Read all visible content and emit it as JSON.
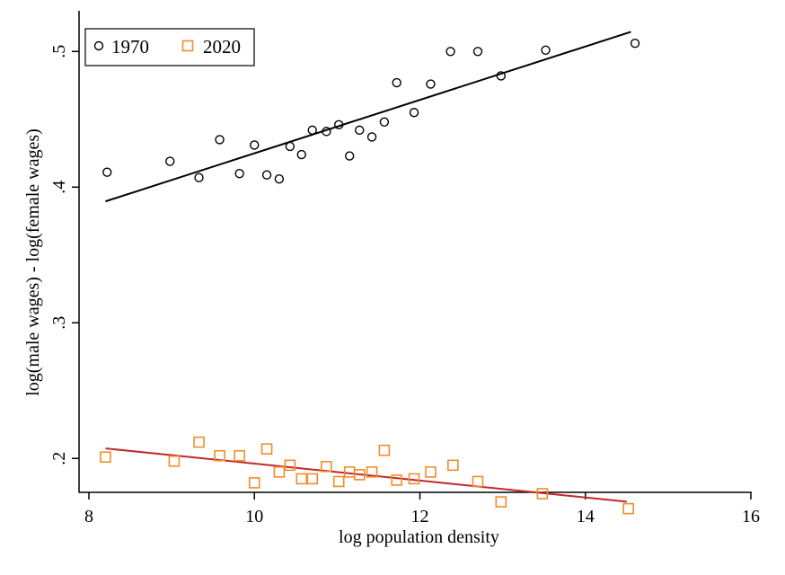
{
  "chart_data": {
    "type": "scatter",
    "xlabel": "log population density",
    "ylabel": "log(male wages) - log(female wages)",
    "xlim": [
      8,
      16
    ],
    "ylim": [
      0.175,
      0.53
    ],
    "x_ticks": [
      8,
      10,
      12,
      14,
      16
    ],
    "x_tick_labels": [
      "8",
      "10",
      "12",
      "14",
      "16"
    ],
    "y_ticks": [
      0.2,
      0.3,
      0.4,
      0.5
    ],
    "y_tick_labels": [
      ".2",
      ".3",
      ".4",
      ".5"
    ],
    "grid": false,
    "legend": {
      "position": "top-left"
    },
    "series": [
      {
        "name": "1970",
        "marker": "circle",
        "color": "#000000",
        "points": [
          [
            8.22,
            0.411
          ],
          [
            8.98,
            0.419
          ],
          [
            9.33,
            0.407
          ],
          [
            9.58,
            0.435
          ],
          [
            9.82,
            0.41
          ],
          [
            10.0,
            0.431
          ],
          [
            10.15,
            0.409
          ],
          [
            10.3,
            0.406
          ],
          [
            10.43,
            0.43
          ],
          [
            10.57,
            0.424
          ],
          [
            10.7,
            0.442
          ],
          [
            10.87,
            0.441
          ],
          [
            11.02,
            0.446
          ],
          [
            11.15,
            0.423
          ],
          [
            11.27,
            0.442
          ],
          [
            11.42,
            0.437
          ],
          [
            11.57,
            0.448
          ],
          [
            11.72,
            0.477
          ],
          [
            11.93,
            0.455
          ],
          [
            12.13,
            0.476
          ],
          [
            12.37,
            0.5
          ],
          [
            12.7,
            0.5
          ],
          [
            12.98,
            0.482
          ],
          [
            13.52,
            0.501
          ],
          [
            14.6,
            0.506
          ]
        ],
        "fit": {
          "x": [
            8.2,
            14.55
          ],
          "y": [
            0.3895,
            0.5145
          ]
        }
      },
      {
        "name": "2020",
        "marker": "square",
        "color": "#F28C28",
        "fit_color": "#C0282E",
        "points": [
          [
            8.2,
            0.201
          ],
          [
            9.03,
            0.198
          ],
          [
            9.33,
            0.212
          ],
          [
            9.58,
            0.202
          ],
          [
            9.82,
            0.202
          ],
          [
            10.0,
            0.182
          ],
          [
            10.15,
            0.207
          ],
          [
            10.3,
            0.19
          ],
          [
            10.43,
            0.195
          ],
          [
            10.57,
            0.185
          ],
          [
            10.7,
            0.185
          ],
          [
            10.87,
            0.194
          ],
          [
            11.02,
            0.183
          ],
          [
            11.15,
            0.19
          ],
          [
            11.27,
            0.188
          ],
          [
            11.42,
            0.19
          ],
          [
            11.57,
            0.206
          ],
          [
            11.72,
            0.184
          ],
          [
            11.93,
            0.185
          ],
          [
            12.13,
            0.19
          ],
          [
            12.4,
            0.195
          ],
          [
            12.7,
            0.183
          ],
          [
            12.98,
            0.168
          ],
          [
            13.48,
            0.174
          ],
          [
            14.52,
            0.163
          ]
        ],
        "fit": {
          "x": [
            8.2,
            14.5
          ],
          "y": [
            0.2074,
            0.1681
          ]
        }
      }
    ]
  }
}
